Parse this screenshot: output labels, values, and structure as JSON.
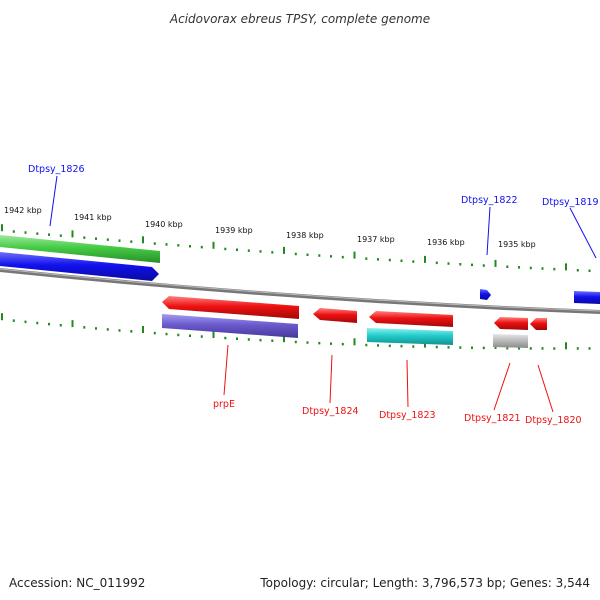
{
  "title": "Acidovorax ebreus TPSY, complete genome",
  "footer": {
    "accession": "Accession: NC_011992",
    "topology": "Topology: circular; Length: 3,796,573 bp; Genes: 3,544"
  },
  "scale_labels": [
    "1942 kbp",
    "1941 kbp",
    "1940 kbp",
    "1939 kbp",
    "1938 kbp",
    "1937 kbp",
    "1936 kbp",
    "1935 kbp"
  ],
  "gene_labels": {
    "top": [
      "Dtpsy_1826",
      "Dtpsy_1822",
      "Dtpsy_1819"
    ],
    "bottom": [
      "prpE",
      "Dtpsy_1824",
      "Dtpsy_1823",
      "Dtpsy_1821",
      "Dtpsy_1820"
    ]
  },
  "colors": {
    "red": "#ee1111",
    "blue": "#1111ee",
    "green": "#44cc44",
    "purple": "#6a5acd",
    "cyan": "#22cccc",
    "gray": "#bbbbbb",
    "tick": "#228822",
    "backbone": "#888888"
  }
}
